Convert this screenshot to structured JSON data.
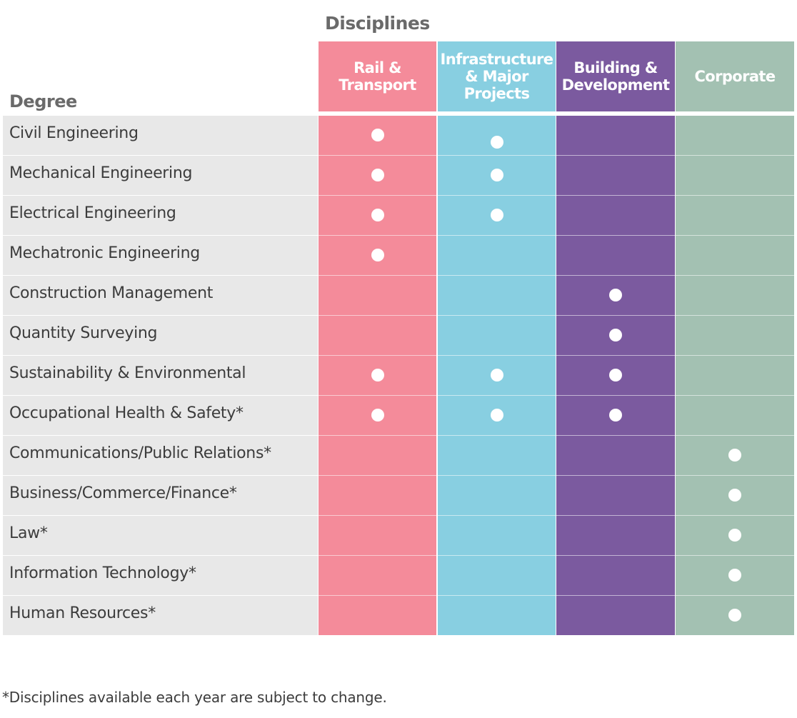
{
  "headers": {
    "disciplines": "Disciplines",
    "degree": "Degree"
  },
  "columns": [
    {
      "label": "Rail &\nTransport",
      "color": "#f48b9a"
    },
    {
      "label": "Infrastructure\n& Major\nProjects",
      "color": "#88cfe1"
    },
    {
      "label": "Building &\nDevelopment",
      "color": "#7b5a9f"
    },
    {
      "label": "Corporate",
      "color": "#a3c1b2"
    }
  ],
  "rows": [
    {
      "degree": "Civil Engineering",
      "marks": [
        true,
        true,
        false,
        false
      ]
    },
    {
      "degree": "Mechanical Engineering",
      "marks": [
        true,
        true,
        false,
        false
      ]
    },
    {
      "degree": "Electrical Engineering",
      "marks": [
        true,
        true,
        false,
        false
      ]
    },
    {
      "degree": "Mechatronic Engineering",
      "marks": [
        true,
        false,
        false,
        false
      ]
    },
    {
      "degree": "Construction Management",
      "marks": [
        false,
        false,
        true,
        false
      ]
    },
    {
      "degree": "Quantity Surveying",
      "marks": [
        false,
        false,
        true,
        false
      ]
    },
    {
      "degree": "Sustainability & Environmental",
      "marks": [
        true,
        true,
        true,
        false
      ]
    },
    {
      "degree": "Occupational Health & Safety*",
      "marks": [
        true,
        true,
        true,
        false
      ]
    },
    {
      "degree": "Communications/Public Relations*",
      "marks": [
        false,
        false,
        false,
        true
      ]
    },
    {
      "degree": "Business/Commerce/Finance*",
      "marks": [
        false,
        false,
        false,
        true
      ]
    },
    {
      "degree": "Law*",
      "marks": [
        false,
        false,
        false,
        true
      ]
    },
    {
      "degree": "Information Technology*",
      "marks": [
        false,
        false,
        false,
        true
      ]
    },
    {
      "degree": "Human Resources*",
      "marks": [
        false,
        false,
        false,
        true
      ]
    }
  ],
  "footnote": "*Disciplines available each year are subject to change."
}
